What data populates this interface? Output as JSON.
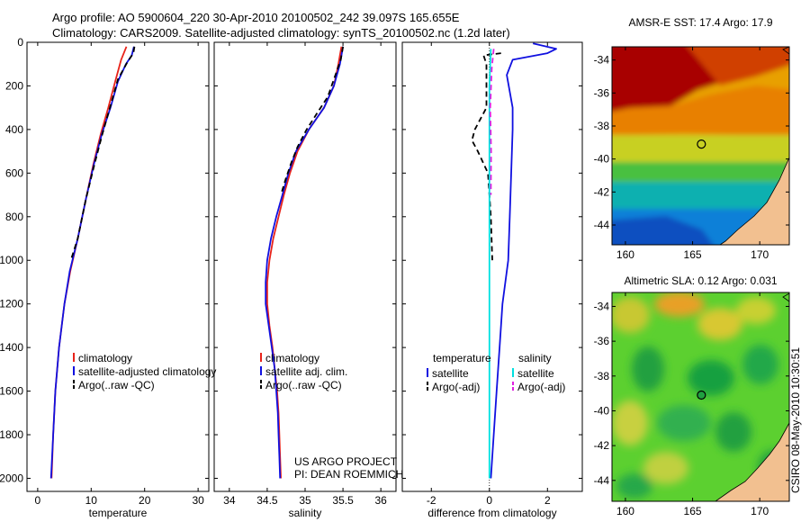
{
  "header": {
    "title_line1": "Argo profile: AO 5900604_220 30-Apr-2010 20100502_242 39.097S 165.655E",
    "title_line2": "Climatology: CARS2009. Satellite-adjusted climatology: synTS_20100502.nc (1.2d later)"
  },
  "colors": {
    "climatology": "#e8231a",
    "satellite": "#1010e0",
    "argo": "#000000",
    "satellite_salinity": "#00e0e0",
    "argo_adj_salinity": "#e020e0"
  },
  "chart_data": [
    {
      "type": "line",
      "id": "temperature",
      "xlabel": "temperature",
      "ylabel": "",
      "xlim": [
        -2,
        32
      ],
      "ylim": [
        2060,
        0
      ],
      "xticks": [
        0,
        10,
        20,
        30
      ],
      "yticks": [
        0,
        200,
        400,
        600,
        800,
        1000,
        1200,
        1400,
        1600,
        1800,
        2000
      ],
      "legend": [
        "climatology",
        "satellite-adjusted climatology",
        "Argo(..raw -QC)"
      ],
      "series": [
        {
          "name": "climatology",
          "color": "#e8231a",
          "style": "solid",
          "points": [
            [
              16.6,
              20
            ],
            [
              15.6,
              80
            ],
            [
              14.5,
              180
            ],
            [
              13.2,
              300
            ],
            [
              11.8,
              420
            ],
            [
              10.4,
              560
            ],
            [
              9.0,
              720
            ],
            [
              7.5,
              900
            ],
            [
              6.1,
              1050
            ],
            [
              5.0,
              1200
            ],
            [
              4.0,
              1400
            ],
            [
              3.3,
              1600
            ],
            [
              2.9,
              1800
            ],
            [
              2.6,
              2000
            ]
          ]
        },
        {
          "name": "satellite-adjusted climatology",
          "color": "#1010e0",
          "style": "solid",
          "points": [
            [
              18.0,
              20
            ],
            [
              17.6,
              60
            ],
            [
              16.5,
              100
            ],
            [
              15.0,
              180
            ],
            [
              13.6,
              300
            ],
            [
              12.0,
              420
            ],
            [
              10.5,
              560
            ],
            [
              9.0,
              720
            ],
            [
              7.5,
              900
            ],
            [
              6.0,
              1050
            ],
            [
              5.0,
              1200
            ],
            [
              4.0,
              1400
            ],
            [
              3.3,
              1600
            ],
            [
              2.9,
              1800
            ],
            [
              2.5,
              2000
            ]
          ]
        },
        {
          "name": "Argo(..raw -QC)",
          "color": "#000000",
          "style": "dashed",
          "points": [
            [
              18.1,
              20
            ],
            [
              17.9,
              50
            ],
            [
              16.8,
              90
            ],
            [
              15.0,
              170
            ],
            [
              13.5,
              300
            ],
            [
              12.1,
              420
            ],
            [
              10.6,
              560
            ],
            [
              9.0,
              720
            ],
            [
              7.5,
              900
            ],
            [
              6.2,
              1000
            ]
          ]
        }
      ]
    },
    {
      "type": "line",
      "id": "salinity",
      "xlabel": "salinity",
      "ylabel": "",
      "xlim": [
        33.8,
        36.2
      ],
      "ylim": [
        2060,
        0
      ],
      "xticks": [
        34,
        34.5,
        35,
        35.5,
        36
      ],
      "yticks": [
        0,
        200,
        400,
        600,
        800,
        1000,
        1200,
        1400,
        1600,
        1800,
        2000
      ],
      "legend": [
        "climatology",
        "satellite adj. clim.",
        "Argo(..raw -QC)"
      ],
      "annotation": [
        "US ARGO PROJECT",
        "PI: DEAN ROEMMICH"
      ],
      "series": [
        {
          "name": "climatology",
          "color": "#e8231a",
          "style": "solid",
          "points": [
            [
              35.48,
              20
            ],
            [
              35.44,
              100
            ],
            [
              35.38,
              200
            ],
            [
              35.25,
              300
            ],
            [
              35.05,
              400
            ],
            [
              34.9,
              500
            ],
            [
              34.8,
              600
            ],
            [
              34.72,
              700
            ],
            [
              34.65,
              800
            ],
            [
              34.58,
              900
            ],
            [
              34.53,
              1000
            ],
            [
              34.5,
              1100
            ],
            [
              34.5,
              1200
            ],
            [
              34.53,
              1300
            ],
            [
              34.57,
              1400
            ],
            [
              34.6,
              1500
            ],
            [
              34.63,
              1600
            ],
            [
              34.65,
              1700
            ],
            [
              34.66,
              1800
            ],
            [
              34.67,
              1900
            ],
            [
              34.68,
              2000
            ]
          ]
        },
        {
          "name": "satellite adj. clim.",
          "color": "#1010e0",
          "style": "solid",
          "points": [
            [
              35.5,
              20
            ],
            [
              35.46,
              100
            ],
            [
              35.38,
              200
            ],
            [
              35.25,
              300
            ],
            [
              35.05,
              400
            ],
            [
              34.88,
              500
            ],
            [
              34.78,
              600
            ],
            [
              34.7,
              700
            ],
            [
              34.62,
              800
            ],
            [
              34.55,
              900
            ],
            [
              34.5,
              1000
            ],
            [
              34.48,
              1100
            ],
            [
              34.48,
              1200
            ],
            [
              34.52,
              1300
            ],
            [
              34.56,
              1400
            ],
            [
              34.6,
              1500
            ],
            [
              34.62,
              1600
            ],
            [
              34.64,
              1700
            ],
            [
              34.65,
              1800
            ],
            [
              34.66,
              1900
            ],
            [
              34.67,
              2000
            ]
          ]
        },
        {
          "name": "Argo(..raw -QC)",
          "color": "#000000",
          "style": "dashed",
          "points": [
            [
              35.5,
              20
            ],
            [
              35.47,
              80
            ],
            [
              35.4,
              150
            ],
            [
              35.3,
              250
            ],
            [
              35.15,
              330
            ],
            [
              35.02,
              400
            ],
            [
              34.9,
              480
            ],
            [
              34.82,
              550
            ],
            [
              34.75,
              620
            ],
            [
              34.68,
              700
            ]
          ]
        }
      ]
    },
    {
      "type": "line",
      "id": "difference",
      "xlabel": "difference from climatology",
      "ylabel": "",
      "xlim": [
        -3,
        3.2
      ],
      "ylim": [
        2060,
        0
      ],
      "xticks": [
        -2,
        0,
        2
      ],
      "yticks": [
        0,
        200,
        400,
        600,
        800,
        1000,
        1200,
        1400,
        1600,
        1800,
        2000
      ],
      "legend_groups": [
        {
          "heading": "temperature",
          "items": [
            "satellite",
            "Argo(-adj)"
          ]
        },
        {
          "heading": "salinity",
          "items": [
            "satellite",
            "Argo(-adj)"
          ]
        }
      ],
      "series": [
        {
          "name": "temperature satellite",
          "color": "#1010e0",
          "style": "solid",
          "points": [
            [
              1.5,
              5
            ],
            [
              2.3,
              30
            ],
            [
              2.0,
              50
            ],
            [
              0.8,
              80
            ],
            [
              0.6,
              150
            ],
            [
              0.8,
              300
            ],
            [
              0.8,
              400
            ],
            [
              0.75,
              600
            ],
            [
              0.7,
              800
            ],
            [
              0.65,
              1000
            ],
            [
              0.45,
              1200
            ],
            [
              0.35,
              1400
            ],
            [
              0.25,
              1600
            ],
            [
              0.15,
              1800
            ],
            [
              0.05,
              2000
            ]
          ]
        },
        {
          "name": "temperature Argo(-adj)",
          "color": "#000000",
          "style": "dashed",
          "points": [
            [
              0.4,
              50
            ],
            [
              -0.2,
              60
            ],
            [
              -0.1,
              100
            ],
            [
              -0.1,
              300
            ],
            [
              -0.5,
              400
            ],
            [
              -0.6,
              450
            ],
            [
              -0.4,
              500
            ],
            [
              -0.05,
              600
            ],
            [
              0.05,
              800
            ],
            [
              0.1,
              1000
            ]
          ]
        },
        {
          "name": "salinity satellite",
          "color": "#00e0e0",
          "style": "solid",
          "points": [
            [
              0.05,
              30
            ],
            [
              0.0,
              200
            ],
            [
              0.0,
              600
            ],
            [
              0.0,
              1000
            ],
            [
              0.0,
              1500
            ],
            [
              0.0,
              2000
            ]
          ]
        },
        {
          "name": "salinity Argo(-adj)",
          "color": "#e020e0",
          "style": "dashed",
          "points": [
            [
              0.15,
              30
            ],
            [
              0.08,
              120
            ],
            [
              0.03,
              300
            ],
            [
              0.06,
              500
            ],
            [
              0.05,
              700
            ]
          ]
        }
      ]
    },
    {
      "type": "heatmap",
      "id": "amsre-sst",
      "title": "AMSR-E SST: 17.4 Argo: 17.9",
      "xlim": [
        159,
        172.2
      ],
      "ylim": [
        -45.2,
        -33.2
      ],
      "xticks": [
        160,
        165,
        170
      ],
      "yticks": [
        -34,
        -36,
        -38,
        -40,
        -42,
        -44
      ],
      "argo_position": [
        165.655,
        -39.097
      ]
    },
    {
      "type": "heatmap",
      "id": "altimetric-sla",
      "title": "Altimetric SLA: 0.12 Argo: 0.031",
      "xlim": [
        159,
        172.2
      ],
      "ylim": [
        -45.2,
        -33.2
      ],
      "xticks": [
        160,
        165,
        170
      ],
      "yticks": [
        -34,
        -36,
        -38,
        -40,
        -42,
        -44
      ],
      "argo_position": [
        165.655,
        -39.097
      ]
    }
  ],
  "stamp": "CSIRO 08-May-2010 10:30:51"
}
